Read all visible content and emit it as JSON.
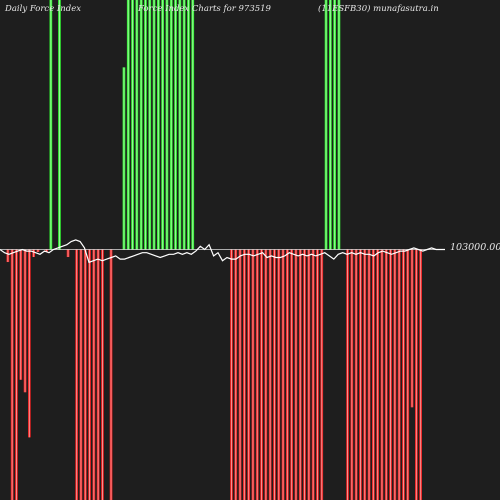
{
  "header": {
    "left": "Daily Force  Index",
    "center": "Force Index Charts for 973519",
    "right": "(11ESFB30) munafasutra.in"
  },
  "colors": {
    "background": "#1e1e1e",
    "positive": "#33ee33",
    "negative": "#ee2222",
    "line": "#ffffff"
  },
  "chart_data": {
    "type": "bar",
    "zero_label": "103000.00",
    "ylim": [
      -100,
      100
    ],
    "bars": [
      -5,
      -100,
      -100,
      -52,
      -57,
      -75,
      -3,
      -1,
      0,
      -1,
      100,
      0,
      100,
      0,
      -3,
      0,
      -100,
      -100,
      -100,
      -100,
      -100,
      -100,
      -100,
      0,
      -100,
      0,
      0,
      73,
      100,
      100,
      100,
      100,
      100,
      100,
      100,
      100,
      100,
      100,
      100,
      100,
      100,
      100,
      100,
      100,
      0,
      0,
      0,
      0,
      0,
      0,
      0,
      0,
      -100,
      -100,
      -100,
      -100,
      -100,
      -100,
      -100,
      -100,
      -100,
      -100,
      -100,
      -100,
      -100,
      -100,
      -100,
      -100,
      -100,
      -100,
      -100,
      -100,
      -100,
      -100,
      100,
      100,
      100,
      100,
      0,
      -100,
      -100,
      -100,
      -100,
      -100,
      -100,
      -100,
      -100,
      -100,
      -100,
      -100,
      -100,
      -100,
      -100,
      -100,
      -63,
      -100,
      -100,
      0,
      0,
      0
    ],
    "line": [
      0,
      -2,
      -3,
      -2,
      -1,
      0,
      -1,
      -1,
      -2,
      -3,
      -1,
      -2,
      0,
      1,
      2,
      3,
      5,
      6,
      5,
      1,
      -8,
      -7,
      -6,
      -7,
      -6,
      -5,
      -4,
      -6,
      -6,
      -5,
      -4,
      -3,
      -2,
      -2,
      -3,
      -4,
      -5,
      -4,
      -3,
      -3,
      -2,
      -3,
      -2,
      -3,
      -1,
      2,
      0,
      3,
      -4,
      -2,
      -7,
      -5,
      -6,
      -6,
      -4,
      -3,
      -3,
      -4,
      -3,
      -2,
      -5,
      -4,
      -5,
      -5,
      -4,
      -2,
      -3,
      -4,
      -3,
      -4,
      -3,
      -4,
      -3,
      -2,
      -4,
      -6,
      -3,
      -2,
      -3,
      -2,
      -3,
      -2,
      -3,
      -3,
      -4,
      -2,
      -1,
      -2,
      -3,
      -2,
      -1,
      -1,
      0,
      1,
      0,
      -1,
      0,
      1,
      0,
      0,
      0
    ]
  }
}
